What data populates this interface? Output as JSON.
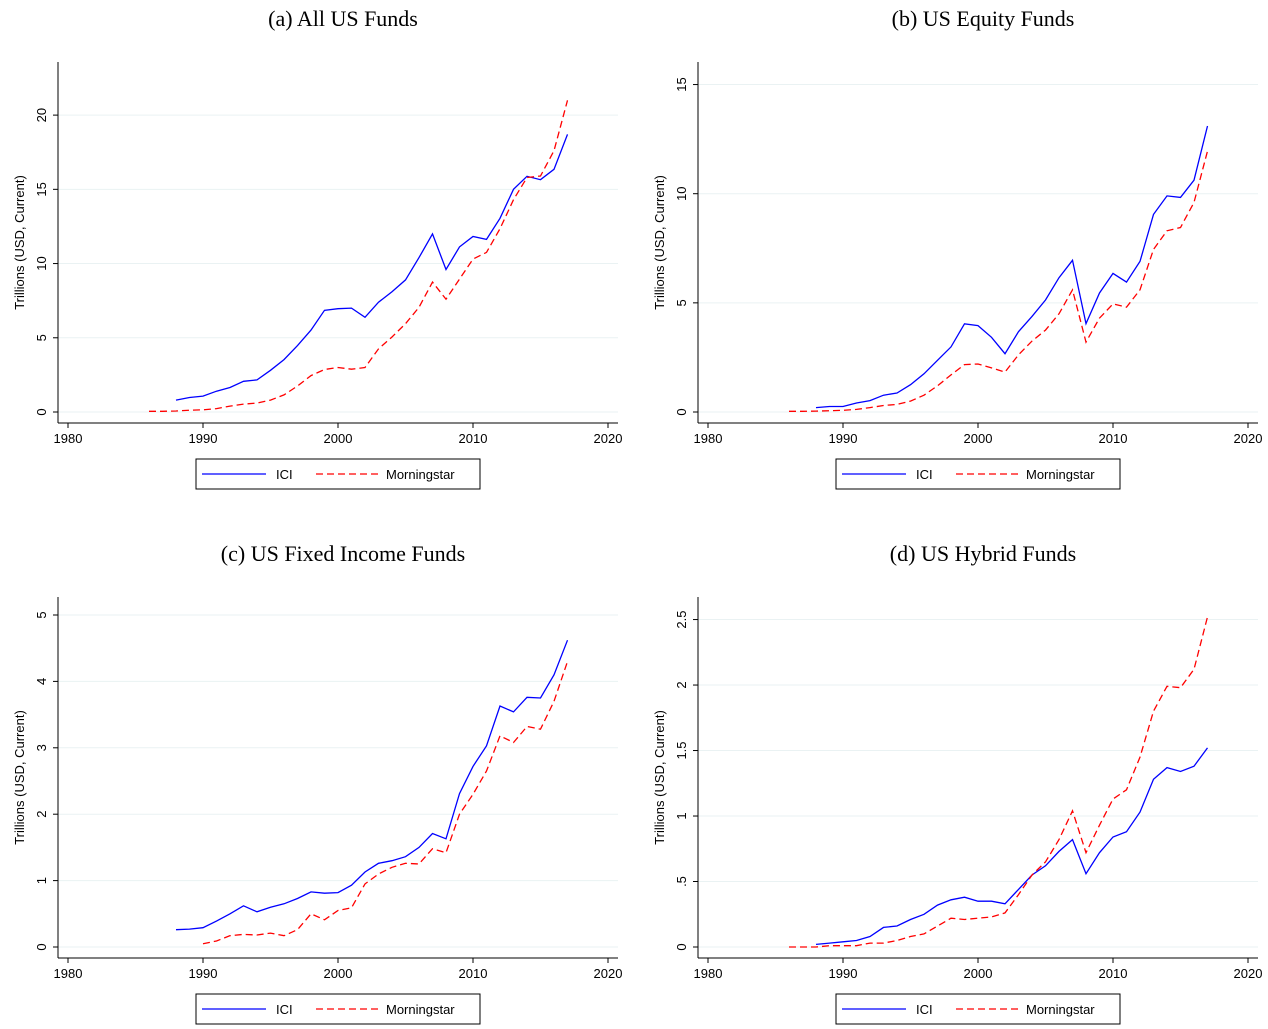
{
  "chart_data": [
    {
      "type": "line",
      "title": "(a) All US Funds",
      "ylabel": "Trillions (USD, Current)",
      "xlabel": "",
      "xlim": [
        1980,
        2020
      ],
      "ylim": [
        0,
        22.5
      ],
      "xticks": [
        "1980",
        "1990",
        "2000",
        "2010",
        "2020"
      ],
      "yticks": [
        "0",
        "5",
        "10",
        "15",
        "20"
      ],
      "ytick_values": [
        0,
        5,
        10,
        15,
        20
      ],
      "grid": true,
      "legend": "bottom",
      "series": [
        {
          "name": "ICI",
          "color": "#0000ff",
          "dash": "solid",
          "x": [
            1988,
            1989,
            1990,
            1991,
            1992,
            1993,
            1994,
            1995,
            1996,
            1997,
            1998,
            1999,
            2000,
            2001,
            2002,
            2003,
            2004,
            2005,
            2006,
            2007,
            2008,
            2009,
            2010,
            2011,
            2012,
            2013,
            2014,
            2015,
            2016,
            2017
          ],
          "y": [
            0.8,
            0.98,
            1.07,
            1.4,
            1.65,
            2.07,
            2.16,
            2.81,
            3.53,
            4.47,
            5.52,
            6.85,
            6.96,
            7.0,
            6.38,
            7.4,
            8.1,
            8.9,
            10.4,
            12.0,
            9.6,
            11.12,
            11.82,
            11.63,
            13.05,
            15.0,
            15.88,
            15.65,
            16.35,
            18.7
          ]
        },
        {
          "name": "Morningstar",
          "color": "#ff0000",
          "dash": "dashed",
          "x": [
            1986,
            1987,
            1988,
            1989,
            1990,
            1991,
            1992,
            1993,
            1994,
            1995,
            1996,
            1997,
            1998,
            1999,
            2000,
            2001,
            2002,
            2003,
            2004,
            2005,
            2006,
            2007,
            2008,
            2009,
            2010,
            2011,
            2012,
            2013,
            2014,
            2015,
            2016,
            2017
          ],
          "y": [
            0.05,
            0.05,
            0.07,
            0.12,
            0.15,
            0.23,
            0.4,
            0.53,
            0.6,
            0.8,
            1.15,
            1.75,
            2.45,
            2.86,
            3.0,
            2.88,
            3.0,
            4.25,
            5.05,
            5.95,
            7.05,
            8.75,
            7.6,
            8.95,
            10.3,
            10.75,
            12.35,
            14.3,
            15.8,
            15.9,
            17.6,
            21.0
          ]
        }
      ]
    },
    {
      "type": "line",
      "title": "(b) US Equity Funds",
      "ylabel": "Trillions (USD, Current)",
      "xlabel": "",
      "xlim": [
        1980,
        2020
      ],
      "ylim": [
        0,
        15.3
      ],
      "xticks": [
        "1980",
        "1990",
        "2000",
        "2010",
        "2020"
      ],
      "yticks": [
        "0",
        "5",
        "10",
        "15"
      ],
      "ytick_values": [
        0,
        5,
        10,
        15
      ],
      "grid": true,
      "legend": "bottom",
      "series": [
        {
          "name": "ICI",
          "color": "#0000ff",
          "dash": "solid",
          "x": [
            1988,
            1989,
            1990,
            1991,
            1992,
            1993,
            1994,
            1995,
            1996,
            1997,
            1998,
            1999,
            2000,
            2001,
            2002,
            2003,
            2004,
            2005,
            2006,
            2007,
            2008,
            2009,
            2010,
            2011,
            2012,
            2013,
            2014,
            2015,
            2016,
            2017
          ],
          "y": [
            0.2,
            0.25,
            0.25,
            0.41,
            0.52,
            0.77,
            0.87,
            1.25,
            1.75,
            2.37,
            2.98,
            4.04,
            3.96,
            3.42,
            2.67,
            3.68,
            4.38,
            5.13,
            6.15,
            6.95,
            4.05,
            5.45,
            6.35,
            5.95,
            6.9,
            9.05,
            9.9,
            9.83,
            10.62,
            13.1
          ]
        },
        {
          "name": "Morningstar",
          "color": "#ff0000",
          "dash": "dashed",
          "x": [
            1986,
            1987,
            1988,
            1989,
            1990,
            1991,
            1992,
            1993,
            1994,
            1995,
            1996,
            1997,
            1998,
            1999,
            2000,
            2001,
            2002,
            2003,
            2004,
            2005,
            2006,
            2007,
            2008,
            2009,
            2010,
            2011,
            2012,
            2013,
            2014,
            2015,
            2016,
            2017
          ],
          "y": [
            0.03,
            0.03,
            0.04,
            0.06,
            0.08,
            0.12,
            0.2,
            0.3,
            0.35,
            0.5,
            0.77,
            1.2,
            1.7,
            2.17,
            2.2,
            2.02,
            1.83,
            2.62,
            3.25,
            3.75,
            4.5,
            5.6,
            3.2,
            4.3,
            4.95,
            4.8,
            5.6,
            7.45,
            8.3,
            8.45,
            9.6,
            11.95
          ]
        }
      ]
    },
    {
      "type": "line",
      "title": "(c) US Fixed Income Funds",
      "ylabel": "Trillions (USD, Current)",
      "xlabel": "",
      "xlim": [
        1980,
        2020
      ],
      "ylim": [
        0,
        5.03
      ],
      "xticks": [
        "1980",
        "1990",
        "2000",
        "2010",
        "2020"
      ],
      "yticks": [
        "0",
        "1",
        "2",
        "3",
        "4",
        "5"
      ],
      "ytick_values": [
        0,
        1,
        2,
        3,
        4,
        5
      ],
      "grid": true,
      "legend": "bottom",
      "series": [
        {
          "name": "ICI",
          "color": "#0000ff",
          "dash": "solid",
          "x": [
            1988,
            1989,
            1990,
            1991,
            1992,
            1993,
            1994,
            1995,
            1996,
            1997,
            1998,
            1999,
            2000,
            2001,
            2002,
            2003,
            2004,
            2005,
            2006,
            2007,
            2008,
            2009,
            2010,
            2011,
            2012,
            2013,
            2014,
            2015,
            2016,
            2017
          ],
          "y": [
            0.26,
            0.27,
            0.29,
            0.39,
            0.5,
            0.62,
            0.53,
            0.6,
            0.65,
            0.73,
            0.83,
            0.81,
            0.82,
            0.93,
            1.13,
            1.26,
            1.3,
            1.36,
            1.5,
            1.71,
            1.63,
            2.31,
            2.72,
            3.03,
            3.63,
            3.54,
            3.76,
            3.75,
            4.1,
            4.62
          ]
        },
        {
          "name": "Morningstar",
          "color": "#ff0000",
          "dash": "dashed",
          "x": [
            1990,
            1991,
            1992,
            1993,
            1994,
            1995,
            1996,
            1997,
            1998,
            1999,
            2000,
            2001,
            2002,
            2003,
            2004,
            2005,
            2006,
            2007,
            2008,
            2009,
            2010,
            2011,
            2012,
            2013,
            2014,
            2015,
            2016,
            2017
          ],
          "y": [
            0.05,
            0.09,
            0.17,
            0.19,
            0.18,
            0.21,
            0.17,
            0.26,
            0.5,
            0.41,
            0.55,
            0.59,
            0.95,
            1.1,
            1.2,
            1.26,
            1.25,
            1.48,
            1.42,
            2.0,
            2.3,
            2.65,
            3.18,
            3.08,
            3.32,
            3.28,
            3.7,
            4.3
          ]
        }
      ]
    },
    {
      "type": "line",
      "title": "(d) US Hybrid Funds",
      "ylabel": "Trillions (USD, Current)",
      "xlabel": "",
      "xlim": [
        1980,
        2020
      ],
      "ylim": [
        0,
        2.55
      ],
      "xticks": [
        "1980",
        "1990",
        "2000",
        "2010",
        "2020"
      ],
      "yticks": [
        "0",
        ".5",
        "1",
        "1.5",
        "2",
        "2.5"
      ],
      "ytick_values": [
        0,
        0.5,
        1,
        1.5,
        2,
        2.5
      ],
      "grid": true,
      "legend": "bottom",
      "series": [
        {
          "name": "ICI",
          "color": "#0000ff",
          "dash": "solid",
          "x": [
            1988,
            1989,
            1990,
            1991,
            1992,
            1993,
            1994,
            1995,
            1996,
            1997,
            1998,
            1999,
            2000,
            2001,
            2002,
            2003,
            2004,
            2005,
            2006,
            2007,
            2008,
            2009,
            2010,
            2011,
            2012,
            2013,
            2014,
            2015,
            2016,
            2017
          ],
          "y": [
            0.02,
            0.03,
            0.04,
            0.05,
            0.08,
            0.15,
            0.16,
            0.21,
            0.25,
            0.32,
            0.36,
            0.38,
            0.35,
            0.35,
            0.33,
            0.44,
            0.55,
            0.62,
            0.73,
            0.82,
            0.56,
            0.72,
            0.84,
            0.88,
            1.03,
            1.28,
            1.37,
            1.34,
            1.38,
            1.52
          ]
        },
        {
          "name": "Morningstar",
          "color": "#ff0000",
          "dash": "dashed",
          "x": [
            1986,
            1987,
            1988,
            1989,
            1990,
            1991,
            1992,
            1993,
            1994,
            1995,
            1996,
            1997,
            1998,
            1999,
            2000,
            2001,
            2002,
            2003,
            2004,
            2005,
            2006,
            2007,
            2008,
            2009,
            2010,
            2011,
            2012,
            2013,
            2014,
            2015,
            2016,
            2017
          ],
          "y": [
            0.0,
            0.0,
            0.0,
            0.01,
            0.01,
            0.01,
            0.03,
            0.03,
            0.05,
            0.08,
            0.1,
            0.16,
            0.22,
            0.21,
            0.22,
            0.23,
            0.26,
            0.4,
            0.55,
            0.65,
            0.82,
            1.04,
            0.72,
            0.93,
            1.13,
            1.2,
            1.45,
            1.8,
            1.99,
            1.98,
            2.12,
            2.52
          ]
        }
      ]
    }
  ]
}
